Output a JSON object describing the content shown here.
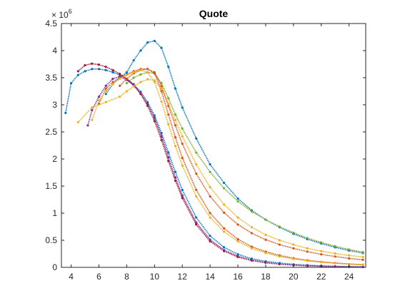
{
  "chart_data": {
    "type": "scatter",
    "title": "Quote",
    "xlabel": "",
    "ylabel": "",
    "xlim": [
      3.3,
      25.2
    ],
    "ylim": [
      0,
      4500000
    ],
    "x_ticks": [
      4,
      6,
      8,
      10,
      12,
      14,
      16,
      18,
      20,
      22,
      24
    ],
    "x_tick_labels": [
      "4",
      "6",
      "8",
      "10",
      "12",
      "14",
      "16",
      "18",
      "20",
      "22",
      "24"
    ],
    "y_ticks": [
      0,
      500000,
      1000000,
      1500000,
      2000000,
      2500000,
      3000000,
      3500000,
      4000000,
      4500000
    ],
    "y_tick_labels": [
      "0",
      "0.5",
      "1",
      "1.5",
      "2",
      "2.5",
      "3",
      "3.5",
      "4",
      "4.5"
    ],
    "y_exponent_label": "× 10",
    "y_exponent_power": "6",
    "grid": false,
    "marker": "dot",
    "series": [
      {
        "color": "#0072BD",
        "points": [
          [
            3.6,
            2850000
          ],
          [
            4.0,
            3400000
          ],
          [
            4.5,
            3550000
          ],
          [
            5.0,
            3620000
          ],
          [
            5.5,
            3660000
          ],
          [
            6.0,
            3660000
          ],
          [
            6.5,
            3640000
          ],
          [
            7.0,
            3600000
          ],
          [
            7.5,
            3550000
          ],
          [
            8.0,
            3480000
          ],
          [
            8.5,
            3380000
          ],
          [
            9.0,
            3240000
          ],
          [
            9.5,
            3050000
          ],
          [
            10.0,
            2800000
          ],
          [
            10.5,
            2480000
          ],
          [
            11.0,
            2120000
          ],
          [
            11.5,
            1760000
          ],
          [
            12.0,
            1430000
          ],
          [
            13.0,
            920000
          ],
          [
            14.0,
            580000
          ],
          [
            15.0,
            370000
          ],
          [
            16.0,
            240000
          ],
          [
            17.0,
            160000
          ],
          [
            18.0,
            110000
          ],
          [
            19.0,
            80000
          ],
          [
            20.0,
            55000
          ],
          [
            21.0,
            40000
          ],
          [
            22.0,
            28000
          ],
          [
            23.0,
            20000
          ],
          [
            24.0,
            14000
          ],
          [
            25.0,
            10000
          ]
        ]
      },
      {
        "color": "#0072BD",
        "points": [
          [
            6.5,
            3200000
          ],
          [
            7.0,
            3380000
          ],
          [
            7.5,
            3500000
          ],
          [
            8.0,
            3600000
          ],
          [
            8.5,
            3820000
          ],
          [
            9.0,
            4000000
          ],
          [
            9.5,
            4150000
          ],
          [
            10.0,
            4180000
          ],
          [
            10.5,
            4050000
          ],
          [
            11.0,
            3700000
          ],
          [
            11.5,
            3300000
          ],
          [
            12.0,
            2950000
          ],
          [
            13.0,
            2380000
          ],
          [
            14.0,
            1900000
          ],
          [
            15.0,
            1560000
          ],
          [
            16.0,
            1270000
          ],
          [
            17.0,
            1050000
          ],
          [
            18.0,
            880000
          ],
          [
            19.0,
            740000
          ],
          [
            20.0,
            620000
          ],
          [
            21.0,
            520000
          ],
          [
            22.0,
            440000
          ],
          [
            23.0,
            370000
          ],
          [
            24.0,
            310000
          ],
          [
            25.0,
            265000
          ]
        ]
      },
      {
        "color": "#77AC30",
        "points": [
          [
            8.0,
            3400000
          ],
          [
            8.5,
            3500000
          ],
          [
            9.0,
            3560000
          ],
          [
            9.5,
            3600000
          ],
          [
            10.0,
            3580000
          ],
          [
            10.5,
            3400000
          ],
          [
            11.0,
            3120000
          ],
          [
            11.5,
            2820000
          ],
          [
            12.0,
            2560000
          ],
          [
            13.0,
            2120000
          ],
          [
            14.0,
            1760000
          ],
          [
            15.0,
            1460000
          ],
          [
            16.0,
            1220000
          ],
          [
            17.0,
            1030000
          ],
          [
            18.0,
            880000
          ],
          [
            19.0,
            750000
          ],
          [
            20.0,
            640000
          ],
          [
            21.0,
            540000
          ],
          [
            22.0,
            460000
          ],
          [
            23.0,
            390000
          ],
          [
            24.0,
            330000
          ],
          [
            25.0,
            280000
          ]
        ]
      },
      {
        "color": "#A2142F",
        "points": [
          [
            4.5,
            3620000
          ],
          [
            5.0,
            3730000
          ],
          [
            5.5,
            3760000
          ],
          [
            6.0,
            3740000
          ],
          [
            6.5,
            3700000
          ],
          [
            7.0,
            3640000
          ],
          [
            7.5,
            3570000
          ],
          [
            8.0,
            3480000
          ],
          [
            8.5,
            3360000
          ],
          [
            9.0,
            3200000
          ],
          [
            9.5,
            2980000
          ],
          [
            10.0,
            2700000
          ],
          [
            10.5,
            2350000
          ],
          [
            11.0,
            1960000
          ],
          [
            11.5,
            1600000
          ],
          [
            12.0,
            1280000
          ],
          [
            13.0,
            790000
          ],
          [
            14.0,
            480000
          ],
          [
            15.0,
            300000
          ],
          [
            16.0,
            190000
          ],
          [
            17.0,
            125000
          ],
          [
            18.0,
            85000
          ],
          [
            19.0,
            58000
          ],
          [
            20.0,
            40000
          ],
          [
            21.0,
            28000
          ],
          [
            22.0,
            20000
          ],
          [
            23.0,
            14000
          ],
          [
            24.0,
            10000
          ],
          [
            25.0,
            7000
          ]
        ]
      },
      {
        "color": "#7E2F8E",
        "points": [
          [
            5.2,
            2620000
          ],
          [
            5.5,
            2900000
          ],
          [
            6.0,
            3150000
          ],
          [
            6.5,
            3350000
          ],
          [
            7.0,
            3480000
          ],
          [
            7.5,
            3520000
          ],
          [
            8.0,
            3460000
          ],
          [
            8.5,
            3360000
          ],
          [
            9.0,
            3220000
          ],
          [
            9.5,
            3020000
          ],
          [
            10.0,
            2760000
          ],
          [
            10.5,
            2420000
          ],
          [
            11.0,
            2030000
          ],
          [
            11.5,
            1660000
          ],
          [
            12.0,
            1330000
          ],
          [
            13.0,
            830000
          ],
          [
            14.0,
            510000
          ],
          [
            15.0,
            320000
          ],
          [
            16.0,
            205000
          ],
          [
            17.0,
            135000
          ],
          [
            18.0,
            90000
          ],
          [
            19.0,
            62000
          ],
          [
            20.0,
            43000
          ],
          [
            21.0,
            30000
          ],
          [
            22.0,
            21000
          ],
          [
            23.0,
            15000
          ],
          [
            24.0,
            11000
          ],
          [
            25.0,
            8000
          ]
        ]
      },
      {
        "color": "#D95319",
        "points": [
          [
            6.0,
            3020000
          ],
          [
            6.5,
            3300000
          ],
          [
            7.0,
            3420000
          ],
          [
            7.5,
            3500000
          ],
          [
            8.0,
            3560000
          ],
          [
            8.5,
            3620000
          ],
          [
            9.0,
            3660000
          ],
          [
            9.5,
            3660000
          ],
          [
            10.0,
            3580000
          ],
          [
            10.5,
            3250000
          ],
          [
            11.0,
            2820000
          ],
          [
            11.5,
            2400000
          ],
          [
            12.0,
            2020000
          ],
          [
            13.0,
            1430000
          ],
          [
            14.0,
            1000000
          ],
          [
            15.0,
            720000
          ],
          [
            16.0,
            520000
          ],
          [
            17.0,
            380000
          ],
          [
            18.0,
            290000
          ],
          [
            19.0,
            220000
          ],
          [
            20.0,
            170000
          ],
          [
            21.0,
            130000
          ],
          [
            22.0,
            100000
          ],
          [
            23.0,
            80000
          ],
          [
            24.0,
            62000
          ],
          [
            25.0,
            50000
          ]
        ]
      },
      {
        "color": "#D95319",
        "points": [
          [
            7.5,
            3350000
          ],
          [
            8.0,
            3480000
          ],
          [
            8.5,
            3580000
          ],
          [
            9.0,
            3640000
          ],
          [
            9.5,
            3660000
          ],
          [
            10.0,
            3600000
          ],
          [
            10.5,
            3350000
          ],
          [
            11.0,
            2980000
          ],
          [
            11.5,
            2620000
          ],
          [
            12.0,
            2280000
          ],
          [
            13.0,
            1730000
          ],
          [
            14.0,
            1310000
          ],
          [
            15.0,
            1010000
          ],
          [
            16.0,
            790000
          ],
          [
            17.0,
            630000
          ],
          [
            18.0,
            510000
          ],
          [
            19.0,
            420000
          ],
          [
            20.0,
            350000
          ],
          [
            21.0,
            290000
          ],
          [
            22.0,
            240000
          ],
          [
            23.0,
            200000
          ],
          [
            24.0,
            165000
          ],
          [
            25.0,
            140000
          ]
        ]
      },
      {
        "color": "#EDB120",
        "points": [
          [
            5.5,
            2720000
          ],
          [
            6.0,
            3080000
          ],
          [
            6.5,
            3260000
          ],
          [
            7.0,
            3380000
          ],
          [
            7.5,
            3480000
          ],
          [
            8.0,
            3550000
          ],
          [
            8.5,
            3600000
          ],
          [
            9.0,
            3640000
          ],
          [
            9.5,
            3600000
          ],
          [
            10.0,
            3420000
          ],
          [
            10.5,
            3060000
          ],
          [
            11.0,
            2640000
          ],
          [
            11.5,
            2240000
          ],
          [
            12.0,
            1880000
          ],
          [
            13.0,
            1310000
          ],
          [
            14.0,
            920000
          ],
          [
            15.0,
            660000
          ],
          [
            16.0,
            480000
          ],
          [
            17.0,
            350000
          ],
          [
            18.0,
            265000
          ],
          [
            19.0,
            200000
          ],
          [
            20.0,
            155000
          ],
          [
            21.0,
            120000
          ],
          [
            22.0,
            95000
          ],
          [
            23.0,
            75000
          ],
          [
            24.0,
            60000
          ],
          [
            25.0,
            48000
          ]
        ]
      },
      {
        "color": "#EDB120",
        "points": [
          [
            4.5,
            2680000
          ],
          [
            5.5,
            2950000
          ],
          [
            6.5,
            3050000
          ],
          [
            7.5,
            3150000
          ],
          [
            8.0,
            3250000
          ],
          [
            8.5,
            3340000
          ],
          [
            9.0,
            3420000
          ],
          [
            9.5,
            3470000
          ],
          [
            10.0,
            3450000
          ],
          [
            10.5,
            3300000
          ],
          [
            11.0,
            3020000
          ],
          [
            11.5,
            2720000
          ],
          [
            12.0,
            2420000
          ],
          [
            13.0,
            1900000
          ],
          [
            14.0,
            1480000
          ],
          [
            15.0,
            1160000
          ],
          [
            16.0,
            920000
          ],
          [
            17.0,
            740000
          ],
          [
            18.0,
            600000
          ],
          [
            19.0,
            500000
          ],
          [
            20.0,
            420000
          ],
          [
            21.0,
            350000
          ],
          [
            22.0,
            300000
          ],
          [
            23.0,
            255000
          ],
          [
            24.0,
            220000
          ],
          [
            25.0,
            190000
          ]
        ]
      }
    ]
  }
}
